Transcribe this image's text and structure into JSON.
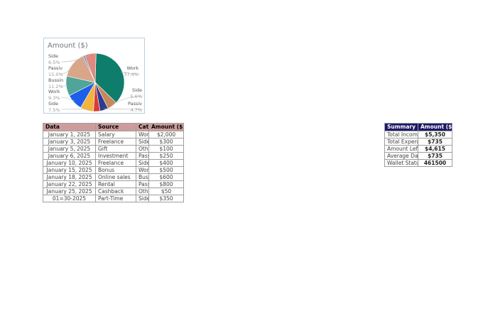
{
  "chart_data": {
    "type": "pie",
    "title": "Amount ($)",
    "slices": [
      {
        "label": "Work",
        "pct_label": "37.4%",
        "value": 37.4,
        "color": "#0e7d6c"
      },
      {
        "label": "Side",
        "pct_label": "5.6%",
        "value": 5.6,
        "color": "#c7875c"
      },
      {
        "label": "Passiv",
        "pct_label": "4.7%",
        "value": 4.7,
        "color": "#2b3c8f"
      },
      {
        "label": "",
        "pct_label": "",
        "value": 3.7,
        "color": "#d93b3b"
      },
      {
        "label": "Side",
        "pct_label": "7.5%",
        "value": 7.5,
        "color": "#f2b43c"
      },
      {
        "label": "Work",
        "pct_label": "9.3%",
        "value": 9.3,
        "color": "#1f5ee8"
      },
      {
        "label": "Bussin",
        "pct_label": "11.2%",
        "value": 11.2,
        "color": "#4fa597"
      },
      {
        "label": "Passiv",
        "pct_label": "15.0%",
        "value": 15.0,
        "color": "#d9a68a"
      },
      {
        "label": "",
        "pct_label": "",
        "value": 0.9,
        "color": "#4a78d6"
      },
      {
        "label": "Side",
        "pct_label": "6.5%",
        "value": 6.5,
        "color": "#e08a7c"
      }
    ]
  },
  "data_table": {
    "headers": [
      "Data",
      "Source",
      "Category",
      "Amount ($)"
    ],
    "rows": [
      {
        "date": "January 1, 2025",
        "source": "Salary",
        "category": "Work",
        "amount": "$2,000"
      },
      {
        "date": "January 3, 2025",
        "source": "Freelance",
        "category": "Side",
        "amount": "$300"
      },
      {
        "date": "January 5, 2025",
        "source": "Gift",
        "category": "Other",
        "amount": "$100"
      },
      {
        "date": "January 6, 2025",
        "source": "Investment",
        "category": "Passive",
        "amount": "$250"
      },
      {
        "date": "January 10, 2025",
        "source": "Freelance",
        "category": "Side",
        "amount": "$400"
      },
      {
        "date": "January 15, 2025",
        "source": "Bonus",
        "category": "Work",
        "amount": "$500"
      },
      {
        "date": "January 18, 2025",
        "source": "Online sales",
        "category": "Bussin",
        "amount": "$600"
      },
      {
        "date": "January 22, 2025",
        "source": "Rental",
        "category": "Passive",
        "amount": "$800"
      },
      {
        "date": "January 25, 2025",
        "source": "Cashback",
        "category": "Other",
        "amount": "$50"
      },
      {
        "date": "01=30-2025",
        "source": "Part-Time",
        "category": "Side",
        "amount": "$350"
      }
    ]
  },
  "summary_table": {
    "headers": [
      "Summary",
      "Amount ($)"
    ],
    "rows": [
      {
        "label": "Total Income",
        "value": "$5,350"
      },
      {
        "label": "Total Expense",
        "value": "$735"
      },
      {
        "label": "Amount Left",
        "value": "$4,615"
      },
      {
        "label": "Average Daily Expense",
        "value": "$735"
      },
      {
        "label": "Wallet Status (",
        "value": "461500"
      }
    ]
  }
}
